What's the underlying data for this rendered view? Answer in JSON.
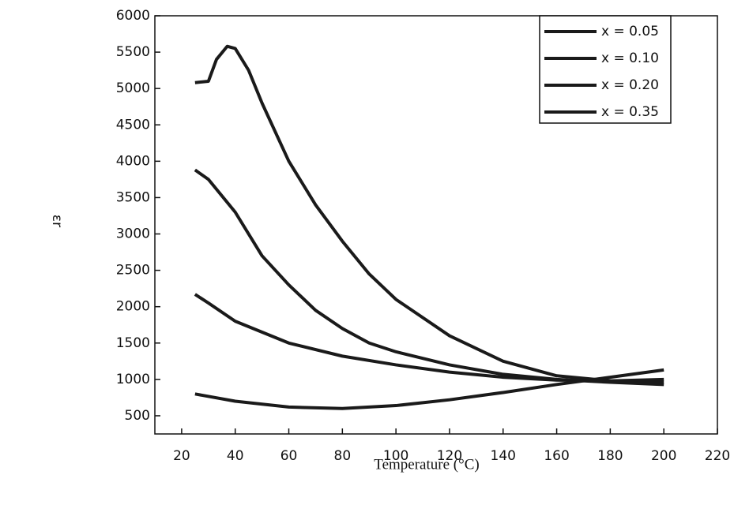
{
  "chart_data": {
    "type": "line",
    "x_label": "Temperature (°C)",
    "y_label": "εr",
    "xlim": [
      10,
      220
    ],
    "ylim": [
      250,
      6000
    ],
    "xticks": [
      20,
      40,
      60,
      80,
      100,
      120,
      140,
      160,
      180,
      200,
      220
    ],
    "yticks": [
      500,
      1000,
      1500,
      2000,
      2500,
      3000,
      3500,
      4000,
      4500,
      5000,
      5500,
      6000
    ],
    "legend": "upper right",
    "series": [
      {
        "name": "x = 0.05",
        "color": "#1a1a1a",
        "x": [
          25,
          30,
          33,
          37,
          40,
          45,
          50,
          60,
          70,
          80,
          90,
          100,
          120,
          140,
          160,
          180,
          200
        ],
        "values": [
          5080,
          5100,
          5400,
          5580,
          5550,
          5250,
          4800,
          4000,
          3400,
          2900,
          2450,
          2100,
          1600,
          1250,
          1050,
          980,
          960
        ]
      },
      {
        "name": "x = 0.10",
        "color": "#1a1a1a",
        "x": [
          25,
          30,
          40,
          50,
          60,
          70,
          80,
          90,
          100,
          120,
          140,
          160,
          180,
          200
        ],
        "values": [
          3880,
          3750,
          3300,
          2700,
          2300,
          1950,
          1700,
          1500,
          1380,
          1200,
          1070,
          1000,
          960,
          930
        ]
      },
      {
        "name": "x = 0.20",
        "color": "#1a1a1a",
        "x": [
          25,
          30,
          40,
          60,
          80,
          100,
          120,
          140,
          160,
          180,
          200
        ],
        "values": [
          2170,
          2050,
          1800,
          1500,
          1320,
          1200,
          1100,
          1030,
          990,
          980,
          1000
        ]
      },
      {
        "name": "x = 0.35",
        "color": "#1a1a1a",
        "x": [
          25,
          40,
          60,
          80,
          100,
          120,
          140,
          160,
          180,
          200
        ],
        "values": [
          800,
          700,
          620,
          600,
          640,
          720,
          820,
          930,
          1030,
          1130
        ]
      }
    ]
  }
}
